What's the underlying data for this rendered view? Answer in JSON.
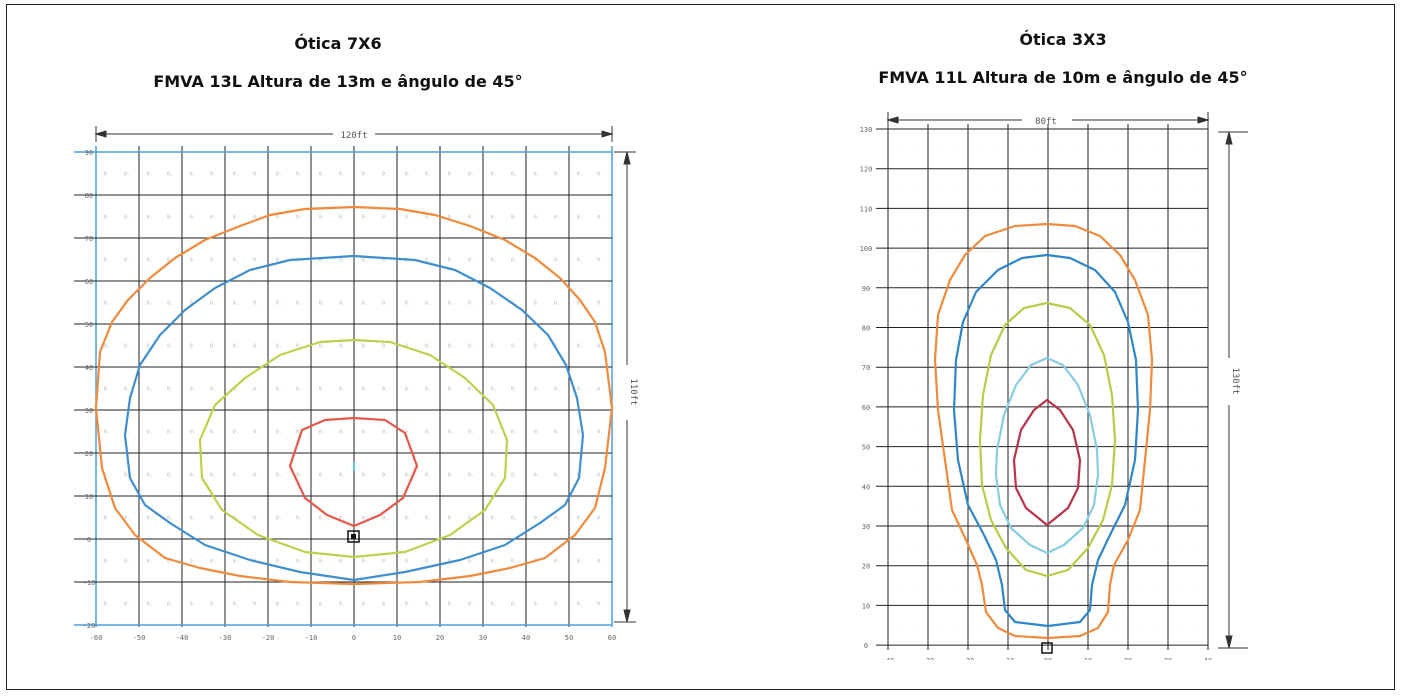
{
  "left_panel": {
    "title": "Ótica 7X6",
    "subtitle": "FMVA 13L Altura de 13m e ângulo de 45°",
    "width_dim": "120ft",
    "height_dim": "110ft",
    "x_ticks": [
      "-60",
      "-50",
      "-40",
      "-30",
      "-20",
      "-10",
      "0",
      "10",
      "20",
      "30",
      "40",
      "50",
      "60"
    ],
    "y_ticks": [
      "90",
      "80",
      "70",
      "60",
      "50",
      "40",
      "30",
      "20",
      "10",
      "0",
      "-10",
      "-20"
    ],
    "contour_colors": [
      "#f08a3c",
      "#3f8fd0",
      "#bfd04a",
      "#e8584a",
      "#62c8d8"
    ]
  },
  "right_panel": {
    "title": "Ótica 3X3",
    "subtitle": "FMVA 11L Altura de 10m e ângulo de 45°",
    "width_dim": "80ft",
    "height_dim": "130ft",
    "x_ticks": [
      "-40",
      "-30",
      "-20",
      "-10",
      "00",
      "10",
      "20",
      "30",
      "40"
    ],
    "y_ticks": [
      "130",
      "120",
      "110",
      "100",
      "90",
      "80",
      "70",
      "60",
      "50",
      "40",
      "30",
      "20",
      "10",
      "0"
    ],
    "contour_colors": [
      "#f08a3c",
      "#2f86c8",
      "#b8cc48",
      "#86cde0",
      "#b8334a"
    ]
  }
}
